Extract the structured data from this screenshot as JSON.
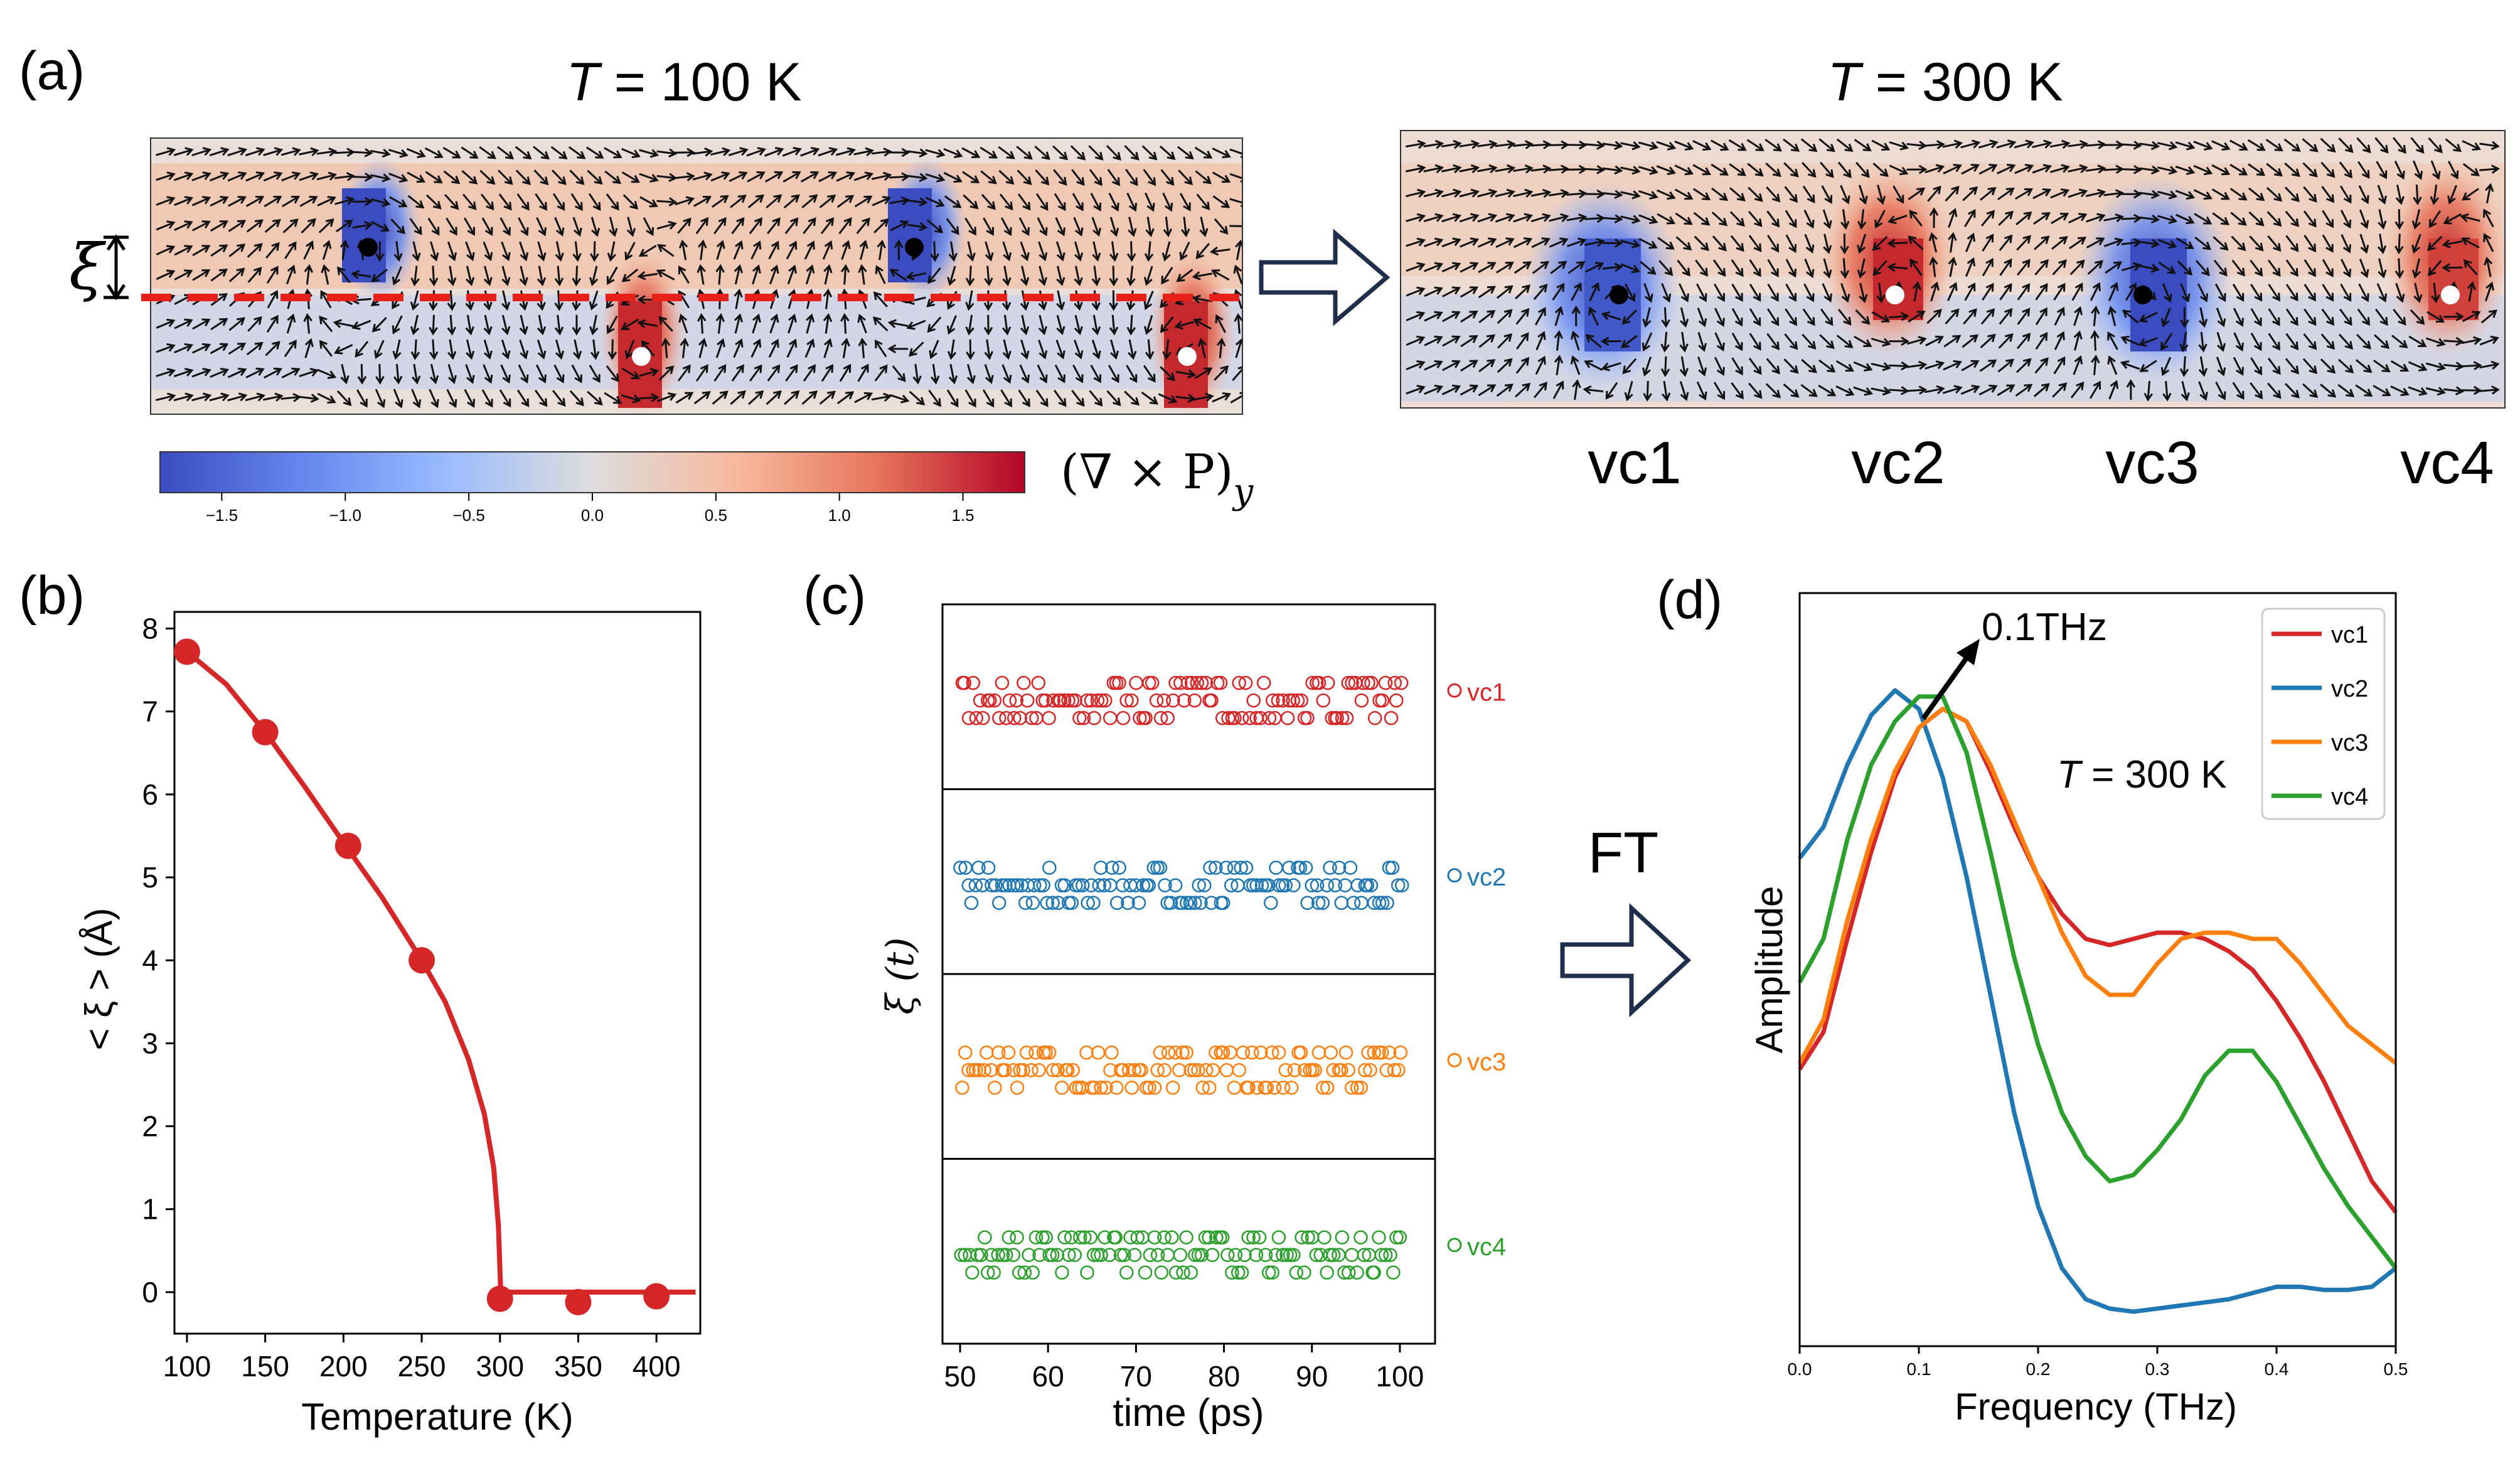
{
  "panel_a": {
    "label": "(a)",
    "left_title_T": "T",
    "left_title_rest": " = 100 K",
    "right_title_T": "T",
    "right_title_rest": " = 300 K",
    "xi_symbol": "ξ",
    "colorbar_label": "(∇ × P)",
    "colorbar_sub": "y",
    "colorbar_ticks": [
      "−1.5",
      "−1.0",
      "−0.5",
      "0.0",
      "0.5",
      "1.0",
      "1.5"
    ],
    "vortex_labels": [
      "vc1",
      "vc2",
      "vc3",
      "vc4"
    ]
  },
  "panel_b": {
    "label": "(b)"
  },
  "panel_c": {
    "label": "(c)",
    "ft_label": "FT"
  },
  "panel_d": {
    "label": "(d)",
    "annotation": "0.1THz",
    "temp_T": "T",
    "temp_rest": " = 300 K"
  },
  "colors": {
    "vc1": "#d62728",
    "vc2": "#1f77b4",
    "vc3": "#ff7f0e",
    "vc4": "#2ca02c",
    "arrow_fill": "#1f2e4a"
  },
  "chart_data": [
    {
      "id": "b",
      "type": "scatter",
      "xlabel": "Temperature (K)",
      "ylabel": "< ξ > (Å)",
      "xticks": [
        100,
        150,
        200,
        250,
        300,
        350,
        400
      ],
      "yticks": [
        0,
        1,
        2,
        3,
        4,
        5,
        6,
        7,
        8
      ],
      "xlim": [
        92,
        428
      ],
      "ylim": [
        -0.5,
        8.2
      ],
      "points": [
        [
          100,
          7.72
        ],
        [
          150,
          6.75
        ],
        [
          203,
          5.38
        ],
        [
          250,
          4.0
        ],
        [
          300,
          -0.08
        ],
        [
          350,
          -0.12
        ],
        [
          400,
          -0.05
        ]
      ],
      "fit_line": [
        [
          100,
          7.72
        ],
        [
          125,
          7.33
        ],
        [
          150,
          6.75
        ],
        [
          175,
          6.1
        ],
        [
          200,
          5.42
        ],
        [
          225,
          4.75
        ],
        [
          250,
          4.0
        ],
        [
          265,
          3.5
        ],
        [
          280,
          2.8
        ],
        [
          290,
          2.15
        ],
        [
          296,
          1.5
        ],
        [
          299,
          0.8
        ],
        [
          300.5,
          0.0
        ],
        [
          425,
          0.0
        ]
      ]
    },
    {
      "id": "c",
      "type": "scatter",
      "xlabel": "time (ps)",
      "ylabel": "ξ (t)",
      "xticks": [
        50,
        60,
        70,
        80,
        90,
        100
      ],
      "xlim": [
        48,
        104
      ],
      "series": [
        {
          "name": "vc1",
          "levels": [
            1,
            0,
            -1
          ]
        },
        {
          "name": "vc2",
          "levels": [
            1,
            0,
            -1
          ]
        },
        {
          "name": "vc3",
          "levels": [
            1,
            0,
            -1
          ]
        },
        {
          "name": "vc4",
          "levels": [
            1,
            0,
            -1
          ]
        }
      ]
    },
    {
      "id": "d",
      "type": "line",
      "xlabel": "Frequency (THz)",
      "ylabel": "Amplitude",
      "xticks": [
        0.0,
        0.1,
        0.2,
        0.3,
        0.4,
        0.5
      ],
      "xlim": [
        0.0,
        0.5
      ],
      "ylim": [
        0,
        1.0
      ],
      "legend": [
        "vc1",
        "vc2",
        "vc3",
        "vc4"
      ],
      "series": [
        {
          "name": "vc1",
          "x": [
            0,
            0.02,
            0.04,
            0.06,
            0.08,
            0.1,
            0.12,
            0.14,
            0.16,
            0.18,
            0.2,
            0.22,
            0.24,
            0.26,
            0.28,
            0.3,
            0.32,
            0.34,
            0.36,
            0.38,
            0.4,
            0.42,
            0.44,
            0.46,
            0.48,
            0.5
          ],
          "y": [
            0.39,
            0.45,
            0.6,
            0.74,
            0.86,
            0.94,
            0.97,
            0.95,
            0.87,
            0.78,
            0.7,
            0.64,
            0.6,
            0.59,
            0.6,
            0.61,
            0.61,
            0.6,
            0.58,
            0.55,
            0.5,
            0.44,
            0.37,
            0.29,
            0.21,
            0.16
          ]
        },
        {
          "name": "vc2",
          "x": [
            0,
            0.02,
            0.04,
            0.06,
            0.08,
            0.1,
            0.12,
            0.14,
            0.16,
            0.18,
            0.2,
            0.22,
            0.24,
            0.26,
            0.28,
            0.3,
            0.32,
            0.34,
            0.36,
            0.38,
            0.4,
            0.42,
            0.44,
            0.46,
            0.48,
            0.5
          ],
          "y": [
            0.73,
            0.78,
            0.88,
            0.96,
            1.0,
            0.97,
            0.86,
            0.7,
            0.51,
            0.32,
            0.17,
            0.07,
            0.02,
            0.005,
            0.0,
            0.005,
            0.01,
            0.015,
            0.02,
            0.03,
            0.04,
            0.04,
            0.035,
            0.035,
            0.04,
            0.07
          ]
        },
        {
          "name": "vc3",
          "x": [
            0,
            0.02,
            0.04,
            0.06,
            0.08,
            0.1,
            0.12,
            0.14,
            0.16,
            0.18,
            0.2,
            0.22,
            0.24,
            0.26,
            0.28,
            0.3,
            0.32,
            0.34,
            0.36,
            0.38,
            0.4,
            0.42,
            0.44,
            0.46,
            0.48,
            0.5
          ],
          "y": [
            0.4,
            0.47,
            0.63,
            0.76,
            0.87,
            0.94,
            0.97,
            0.95,
            0.88,
            0.79,
            0.7,
            0.61,
            0.54,
            0.51,
            0.51,
            0.56,
            0.6,
            0.61,
            0.61,
            0.6,
            0.6,
            0.56,
            0.51,
            0.46,
            0.43,
            0.4
          ]
        },
        {
          "name": "vc4",
          "x": [
            0,
            0.02,
            0.04,
            0.06,
            0.08,
            0.1,
            0.12,
            0.14,
            0.16,
            0.18,
            0.2,
            0.22,
            0.24,
            0.26,
            0.28,
            0.3,
            0.32,
            0.34,
            0.36,
            0.38,
            0.4,
            0.42,
            0.44,
            0.46,
            0.48,
            0.5
          ],
          "y": [
            0.53,
            0.6,
            0.76,
            0.88,
            0.95,
            0.99,
            0.99,
            0.9,
            0.74,
            0.57,
            0.43,
            0.32,
            0.25,
            0.21,
            0.22,
            0.26,
            0.31,
            0.38,
            0.42,
            0.42,
            0.37,
            0.3,
            0.23,
            0.17,
            0.12,
            0.07
          ]
        }
      ]
    }
  ]
}
